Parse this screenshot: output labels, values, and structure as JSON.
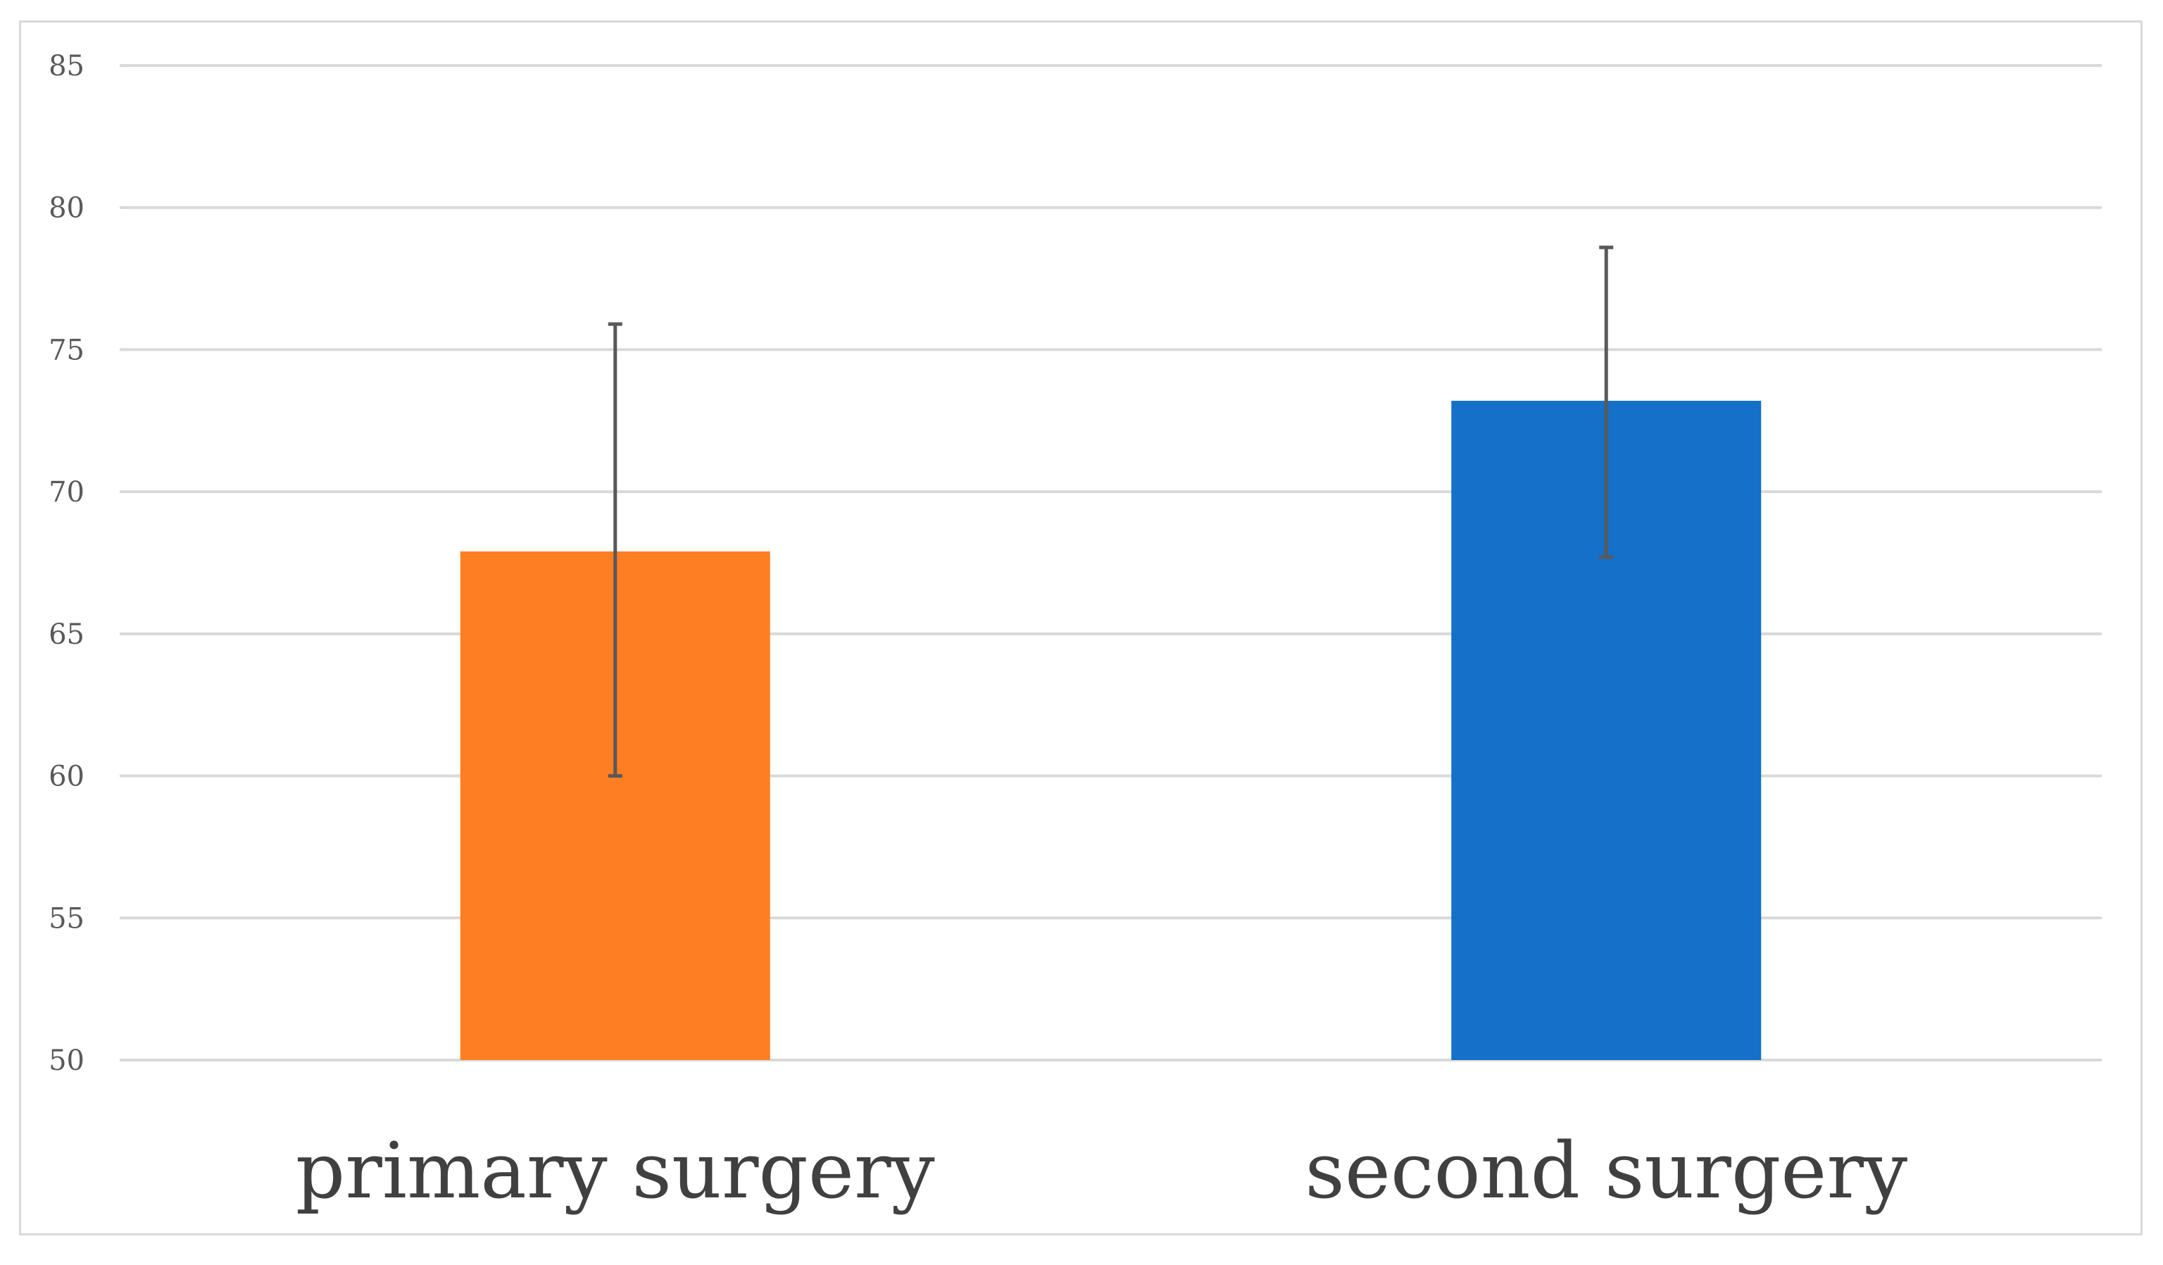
{
  "chart_data": {
    "type": "bar",
    "categories": [
      "primary surgery",
      "second surgery"
    ],
    "values": [
      67.9,
      73.2
    ],
    "error_bars": [
      {
        "low": 60.0,
        "high": 75.9
      },
      {
        "low": 67.7,
        "high": 78.6
      }
    ],
    "colors": [
      "#fd7e23",
      "#1470c8"
    ],
    "yticks": [
      "50",
      "55",
      "60",
      "65",
      "70",
      "75",
      "80",
      "85"
    ],
    "ylim": [
      50,
      85
    ],
    "grid": true,
    "title": "",
    "xlabel": "",
    "ylabel": ""
  }
}
